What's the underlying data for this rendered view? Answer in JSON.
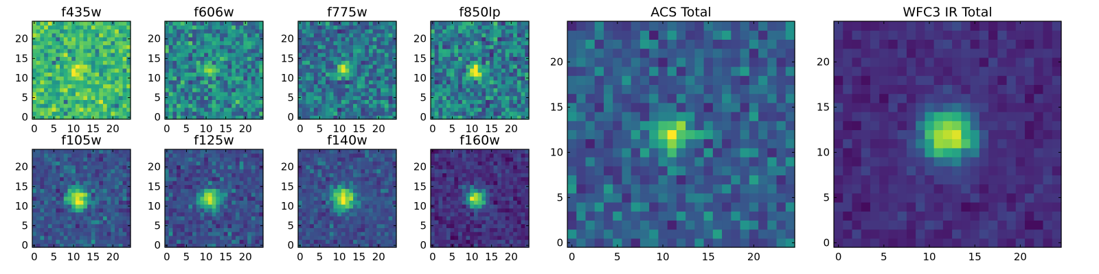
{
  "chart_data": [
    {
      "type": "heatmap",
      "title": "f435w",
      "noise": 0.14,
      "peak": 0.3,
      "sigma": 1.3,
      "base": 0.68,
      "xticks": [
        0,
        5,
        10,
        15,
        20
      ],
      "yticks": [
        0,
        5,
        10,
        15,
        20
      ],
      "xlim": [
        -0.5,
        24.5
      ],
      "ylim": [
        -0.5,
        24.5
      ],
      "source_center": [
        11,
        12
      ],
      "colormap": "viridis",
      "grid": false
    },
    {
      "type": "heatmap",
      "title": "f606w",
      "noise": 0.14,
      "peak": 0.5,
      "sigma": 1.1,
      "base": 0.48,
      "xticks": [
        0,
        5,
        10,
        15,
        20
      ],
      "yticks": [
        0,
        5,
        10,
        15,
        20
      ],
      "xlim": [
        -0.5,
        24.5
      ],
      "ylim": [
        -0.5,
        24.5
      ],
      "source_center": [
        11,
        12
      ],
      "colormap": "viridis",
      "grid": false
    },
    {
      "type": "heatmap",
      "title": "f775w",
      "noise": 0.13,
      "peak": 0.58,
      "sigma": 1.2,
      "base": 0.42,
      "xticks": [
        0,
        5,
        10,
        15,
        20
      ],
      "yticks": [
        0,
        5,
        10,
        15,
        20
      ],
      "xlim": [
        -0.5,
        24.5
      ],
      "ylim": [
        -0.5,
        24.5
      ],
      "source_center": [
        11,
        12
      ],
      "colormap": "viridis",
      "grid": false
    },
    {
      "type": "heatmap",
      "title": "f850lp",
      "noise": 0.14,
      "peak": 0.55,
      "sigma": 1.3,
      "base": 0.45,
      "xticks": [
        0,
        5,
        10,
        15,
        20
      ],
      "yticks": [
        0,
        5,
        10,
        15,
        20
      ],
      "xlim": [
        -0.5,
        24.5
      ],
      "ylim": [
        -0.5,
        24.5
      ],
      "source_center": [
        11,
        12
      ],
      "colormap": "viridis",
      "grid": false
    },
    {
      "type": "heatmap",
      "title": "f105w",
      "noise": 0.1,
      "peak": 0.72,
      "sigma": 1.8,
      "base": 0.32,
      "xticks": [
        0,
        5,
        10,
        15,
        20
      ],
      "yticks": [
        0,
        5,
        10,
        15,
        20
      ],
      "xlim": [
        -0.5,
        24.5
      ],
      "ylim": [
        -0.5,
        24.5
      ],
      "source_center": [
        11,
        12
      ],
      "colormap": "viridis",
      "grid": false
    },
    {
      "type": "heatmap",
      "title": "f125w",
      "noise": 0.1,
      "peak": 0.7,
      "sigma": 1.8,
      "base": 0.3,
      "xticks": [
        0,
        5,
        10,
        15,
        20
      ],
      "yticks": [
        0,
        5,
        10,
        15,
        20
      ],
      "xlim": [
        -0.5,
        24.5
      ],
      "ylim": [
        -0.5,
        24.5
      ],
      "source_center": [
        11,
        12
      ],
      "colormap": "viridis",
      "grid": false
    },
    {
      "type": "heatmap",
      "title": "f140w",
      "noise": 0.09,
      "peak": 0.72,
      "sigma": 2.0,
      "base": 0.3,
      "xticks": [
        0,
        5,
        10,
        15,
        20
      ],
      "yticks": [
        0,
        5,
        10,
        15,
        20
      ],
      "xlim": [
        -0.5,
        24.5
      ],
      "ylim": [
        -0.5,
        24.5
      ],
      "source_center": [
        11,
        12
      ],
      "colormap": "viridis",
      "grid": false
    },
    {
      "type": "heatmap",
      "title": "f160w",
      "noise": 0.09,
      "peak": 0.8,
      "sigma": 1.7,
      "base": 0.18,
      "xticks": [
        0,
        5,
        10,
        15,
        20
      ],
      "yticks": [
        0,
        5,
        10,
        15,
        20
      ],
      "xlim": [
        -0.5,
        24.5
      ],
      "ylim": [
        -0.5,
        24.5
      ],
      "source_center": [
        11,
        12
      ],
      "colormap": "viridis",
      "grid": false
    },
    {
      "type": "heatmap",
      "title": "ACS Total",
      "noise": 0.11,
      "peak": 0.62,
      "sigma": 1.4,
      "base": 0.35,
      "xticks": [
        0,
        5,
        10,
        15,
        20
      ],
      "yticks": [
        0,
        5,
        10,
        15,
        20
      ],
      "xlim": [
        -0.5,
        24.5
      ],
      "ylim": [
        -0.5,
        24.5
      ],
      "source_center": [
        11,
        12
      ],
      "colormap": "viridis",
      "grid": false
    },
    {
      "type": "heatmap",
      "title": "WFC3 IR Total",
      "noise": 0.06,
      "peak": 0.8,
      "sigma": 2.1,
      "base": 0.16,
      "xticks": [
        0,
        5,
        10,
        15,
        20
      ],
      "yticks": [
        0,
        5,
        10,
        15,
        20
      ],
      "xlim": [
        -0.5,
        24.5
      ],
      "ylim": [
        -0.5,
        24.5
      ],
      "source_center": [
        12,
        12
      ],
      "colormap": "viridis",
      "grid": false
    }
  ]
}
